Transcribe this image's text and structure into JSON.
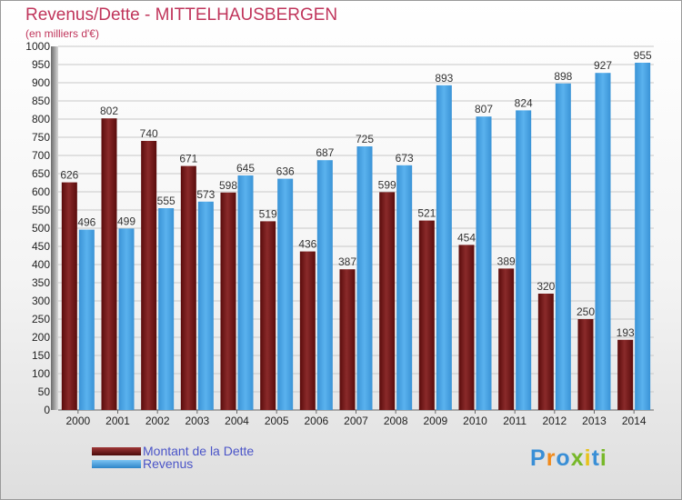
{
  "chart_data": {
    "type": "bar",
    "title": "Revenus/Dette - MITTELHAUSBERGEN",
    "subtitle": "(en milliers d'€)",
    "categories": [
      "2000",
      "2001",
      "2002",
      "2003",
      "2004",
      "2005",
      "2006",
      "2007",
      "2008",
      "2009",
      "2010",
      "2011",
      "2012",
      "2013",
      "2014"
    ],
    "series": [
      {
        "name": "Montant de la Dette",
        "color": "#7a1c1c",
        "values": [
          626,
          802,
          740,
          671,
          598,
          519,
          436,
          387,
          599,
          521,
          454,
          389,
          320,
          250,
          193
        ]
      },
      {
        "name": "Revenus",
        "color": "#46a3e3",
        "values": [
          496,
          499,
          555,
          573,
          645,
          636,
          687,
          725,
          673,
          893,
          807,
          824,
          898,
          927,
          955
        ]
      }
    ],
    "ylim": [
      0,
      1000
    ],
    "ytick_step": 50,
    "grid": true,
    "legend_position": "bottom-left"
  },
  "logo": {
    "text": "Proxiti",
    "colors": [
      "#3a8fd6",
      "#f08a1c",
      "#3a8fd6",
      "#78b82a",
      "#e8c21a",
      "#3a8fd6",
      "#78b82a"
    ]
  }
}
